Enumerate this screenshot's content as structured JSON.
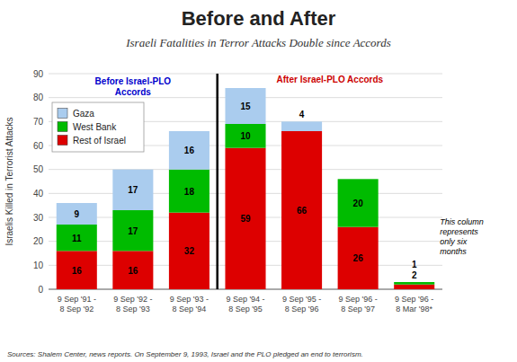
{
  "chart_data": {
    "type": "bar",
    "title": "Before and After",
    "subtitle": "Israeli Fatalities in Terror Attacks Double since Accords",
    "y_label": "Israelis Killed in Terrorist Attacks",
    "categories": [
      "9 Sep '91 -\n8 Sep '92",
      "9 Sep '92 -\n8 Sep '93",
      "9 Sep '93 -\n8 Sep '94",
      "9 Sep '94 -\n8 Sep '95",
      "9 Sep '95 -\n8 Sep '96",
      "9 Sep '96 -\n8 Sep '97",
      "9 Sep '96 -\n8 Mar '98*"
    ],
    "series": [
      {
        "name": "Rest of Israel",
        "color": "#dd0000",
        "values": [
          16,
          16,
          32,
          59,
          66,
          26,
          2
        ]
      },
      {
        "name": "West Bank",
        "color": "#00bb00",
        "values": [
          11,
          17,
          18,
          10,
          0,
          20,
          1
        ]
      },
      {
        "name": "Gaza",
        "color": "#aaccee",
        "values": [
          9,
          17,
          16,
          15,
          4,
          0,
          0
        ]
      }
    ],
    "ylim": [
      0,
      90
    ],
    "yticks": [
      0,
      10,
      20,
      30,
      40,
      50,
      60,
      70,
      80,
      90
    ],
    "grid": true,
    "stacked": true,
    "data_labels": true,
    "legend": "upper left",
    "annotations": [
      {
        "text": "Before Israel-PLO\nAccords",
        "color": "#0000cc"
      },
      {
        "text": "After Israel-PLO Accords",
        "color": "#cc0000"
      },
      {
        "text": "This column\nrepresents\nonly six\nmonths"
      }
    ],
    "source": "Sources: Shalem Center, news reports.  On September 9, 1993, Israel and the PLO pledged an end to terrorism."
  }
}
